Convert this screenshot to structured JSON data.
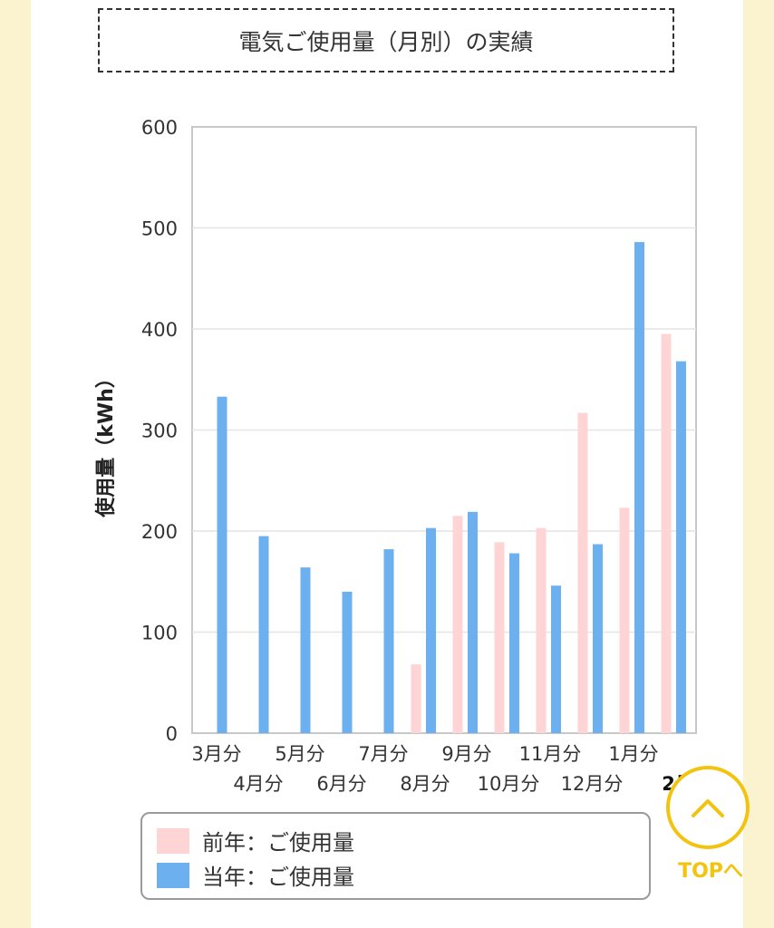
{
  "title": "電気ご使用量（月別）の実績",
  "colors": {
    "previous_year": "#ffd4d4",
    "current_year": "#6cb0f0",
    "top_accent": "#f2c30f"
  },
  "chart_data": {
    "type": "bar",
    "ylabel": "使用量（kWh）",
    "ylim": [
      0,
      600
    ],
    "yticks": [
      "0",
      "100",
      "200",
      "300",
      "400",
      "500",
      "600"
    ],
    "categories": [
      "3月分",
      "4月分",
      "5月分",
      "6月分",
      "7月分",
      "8月分",
      "9月分",
      "10月分",
      "11月分",
      "12月分",
      "1月分",
      "2月"
    ],
    "series": [
      {
        "name": "前年：ご使用量",
        "values": [
          null,
          null,
          null,
          null,
          null,
          68,
          215,
          189,
          203,
          317,
          223,
          395
        ]
      },
      {
        "name": "当年：ご使用量",
        "values": [
          333,
          195,
          164,
          140,
          182,
          203,
          219,
          178,
          146,
          187,
          486,
          368
        ]
      }
    ],
    "grid": true,
    "legend_position": "bottom"
  },
  "legend": {
    "previous_label": "前年：ご使用量",
    "current_label": "当年：ご使用量"
  },
  "top_button": {
    "label": "TOPへ",
    "icon": "chevron-up-icon"
  }
}
